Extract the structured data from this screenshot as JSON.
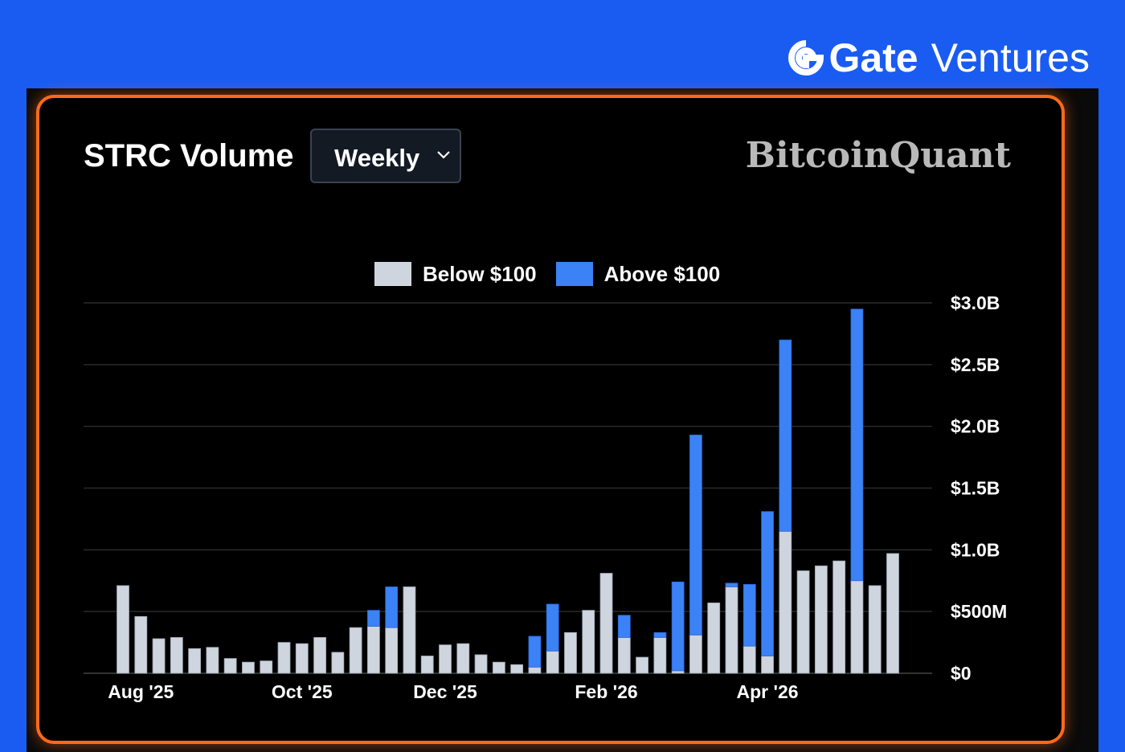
{
  "brand": {
    "name": "Gate",
    "sub": "Ventures"
  },
  "header": {
    "title": "STRC Volume",
    "period": "Weekly",
    "watermark": "BitcoinQuant"
  },
  "colors": {
    "background": "#1a5cf2",
    "panel_border": "#ff6a1a",
    "below": "#cfd5de",
    "above": "#3b82f6",
    "grid": "#2a2a2a"
  },
  "chart_data": {
    "type": "bar",
    "stacked": true,
    "title": "STRC Volume",
    "x_tick_labels": [
      "Aug '25",
      "Oct '25",
      "Dec '25",
      "Feb '26",
      "Apr '26"
    ],
    "y_tick_labels": [
      "$0",
      "$500M",
      "$1.0B",
      "$1.5B",
      "$2.0B",
      "$2.5B",
      "$3.0B"
    ],
    "ylim": [
      0,
      3.0
    ],
    "y_unit": "$B",
    "grid": true,
    "legend_position": "top-center",
    "series": [
      {
        "name": "Below $100",
        "values": [
          0.71,
          0.46,
          0.28,
          0.29,
          0.2,
          0.21,
          0.12,
          0.09,
          0.1,
          0.25,
          0.24,
          0.29,
          0.17,
          0.37,
          0.38,
          0.37,
          0.7,
          0.14,
          0.23,
          0.24,
          0.15,
          0.09,
          0.07,
          0.05,
          0.18,
          0.33,
          0.51,
          0.81,
          0.29,
          0.13,
          0.29,
          0.02,
          0.31,
          0.57,
          0.7,
          0.22,
          0.14,
          1.15,
          0.83,
          0.87,
          0.91,
          0.75,
          0.71,
          0.97
        ]
      },
      {
        "name": "Above $100",
        "values": [
          0,
          0,
          0,
          0,
          0,
          0,
          0,
          0,
          0,
          0,
          0,
          0,
          0,
          0,
          0.13,
          0.33,
          0,
          0,
          0,
          0,
          0,
          0,
          0,
          0.25,
          0.38,
          0,
          0,
          0,
          0.18,
          0,
          0.04,
          0.72,
          1.62,
          0,
          0.03,
          0.5,
          1.17,
          1.55,
          0,
          0,
          0,
          2.2,
          0,
          0
        ]
      }
    ],
    "x_tick_indices": [
      1,
      10,
      18,
      27,
      36
    ]
  }
}
